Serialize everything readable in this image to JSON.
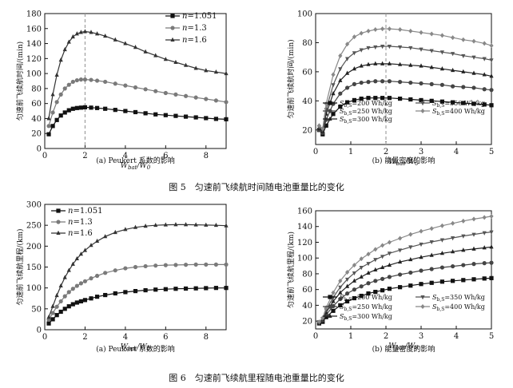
{
  "figure5": {
    "caption": "图 5　匀速前飞续航时间随电池重量比的变化"
  },
  "figure6": {
    "caption": "图 6　匀速前飞续航里程随电池重量比的变化"
  },
  "chart_data": [
    {
      "id": "c1",
      "type": "line",
      "subtitle": "(a) Peukert 系数的影响",
      "ylabel": "匀速前飞续航时间/(min)",
      "xlabel": "W_bat/W_0",
      "xlim": [
        0,
        9
      ],
      "ylim": [
        0,
        180
      ],
      "xticks": [
        0,
        2,
        4,
        6,
        8
      ],
      "yticks": [
        0,
        20,
        40,
        60,
        80,
        100,
        120,
        140,
        160,
        180
      ],
      "vline": 2,
      "grid": false,
      "legend": "top-right",
      "series": [
        {
          "name": "n=1.051",
          "marker": "square",
          "color": "#111111",
          "x": [
            0.2,
            0.4,
            0.6,
            0.8,
            1.0,
            1.2,
            1.4,
            1.6,
            1.8,
            2.0,
            2.3,
            2.6,
            3.0,
            3.5,
            4.0,
            4.5,
            5.0,
            5.5,
            6.0,
            6.5,
            7.0,
            7.5,
            8.0,
            8.5,
            9.0
          ],
          "y": [
            19,
            30,
            38,
            44,
            48,
            51,
            53,
            54,
            54.5,
            55,
            54.5,
            54,
            53,
            51.5,
            50,
            48.5,
            47,
            45.5,
            44.5,
            43.5,
            42.5,
            41.5,
            40.5,
            39.5,
            39
          ]
        },
        {
          "name": "n=1.3",
          "marker": "circle",
          "color": "#7a7a7a",
          "x": [
            0.2,
            0.4,
            0.6,
            0.8,
            1.0,
            1.2,
            1.4,
            1.6,
            1.8,
            2.0,
            2.3,
            2.6,
            3.0,
            3.5,
            4.0,
            4.5,
            5.0,
            5.5,
            6.0,
            6.5,
            7.0,
            7.5,
            8.0,
            8.5,
            9.0
          ],
          "y": [
            30,
            48,
            62,
            72,
            80,
            85,
            89,
            91,
            92,
            92,
            91.5,
            90.5,
            89,
            86.5,
            84,
            81.5,
            79,
            76.5,
            74,
            72,
            70,
            68,
            66,
            64,
            62
          ]
        },
        {
          "name": "n=1.6",
          "marker": "triangle",
          "color": "#333333",
          "x": [
            0.2,
            0.4,
            0.6,
            0.8,
            1.0,
            1.2,
            1.4,
            1.6,
            1.8,
            2.0,
            2.3,
            2.6,
            3.0,
            3.5,
            4.0,
            4.5,
            5.0,
            5.5,
            6.0,
            6.5,
            7.0,
            7.5,
            8.0,
            8.5,
            9.0
          ],
          "y": [
            40,
            72,
            98,
            118,
            132,
            142,
            149,
            153,
            155,
            156,
            155,
            153,
            150,
            145,
            140,
            135,
            129,
            124,
            119,
            115,
            111,
            107,
            104,
            102,
            100
          ]
        }
      ]
    },
    {
      "id": "c2",
      "type": "line",
      "subtitle": "(b) 能量密度的影响",
      "ylabel": "匀速前飞续航时间/(min)",
      "xlabel": "W_bat/W_0",
      "xlim": [
        0,
        5
      ],
      "ylim": [
        10,
        100
      ],
      "xticks": [
        0,
        1,
        2,
        3,
        4,
        5
      ],
      "yticks": [
        20,
        40,
        60,
        80,
        100
      ],
      "vline": 2,
      "grid": false,
      "legend": "bottom",
      "series": [
        {
          "name": "S_b,S=200 Wh/kg",
          "marker": "square",
          "color": "#111111",
          "x": [
            0.1,
            0.2,
            0.3,
            0.5,
            0.7,
            0.9,
            1.1,
            1.3,
            1.5,
            1.7,
            1.9,
            2.1,
            2.4,
            2.7,
            3.0,
            3.3,
            3.6,
            3.9,
            4.2,
            4.5,
            4.8,
            5.0
          ],
          "y": [
            20,
            17,
            23,
            31,
            36,
            39,
            40.5,
            41.5,
            42,
            42,
            42,
            42,
            41.5,
            41,
            40.5,
            40,
            39.5,
            39,
            38.5,
            38,
            37.5,
            37
          ]
        },
        {
          "name": "S_b,S=250 Wh/kg",
          "marker": "circle",
          "color": "#444444",
          "x": [
            0.1,
            0.2,
            0.3,
            0.5,
            0.7,
            0.9,
            1.1,
            1.3,
            1.5,
            1.7,
            1.9,
            2.1,
            2.4,
            2.7,
            3.0,
            3.3,
            3.6,
            3.9,
            4.2,
            4.5,
            4.8,
            5.0
          ],
          "y": [
            20,
            18,
            27,
            38,
            45,
            49,
            51.5,
            52.5,
            53,
            53.5,
            53.5,
            53.5,
            53,
            52.5,
            52,
            51.5,
            51,
            50,
            49.5,
            49,
            48,
            47.5
          ]
        },
        {
          "name": "S_b,S=300 Wh/kg",
          "marker": "triangle",
          "color": "#222222",
          "x": [
            0.1,
            0.2,
            0.3,
            0.5,
            0.7,
            0.9,
            1.1,
            1.3,
            1.5,
            1.7,
            1.9,
            2.1,
            2.4,
            2.7,
            3.0,
            3.3,
            3.6,
            3.9,
            4.2,
            4.5,
            4.8,
            5.0
          ],
          "y": [
            21,
            19,
            31,
            45,
            54,
            59,
            62,
            64,
            65,
            65.5,
            65.5,
            65.5,
            65,
            64.5,
            64,
            63,
            62,
            61,
            60,
            59,
            58,
            57
          ]
        },
        {
          "name": "S_b,S=350 Wh/kg",
          "marker": "triangle-down",
          "color": "#555555",
          "x": [
            0.1,
            0.2,
            0.3,
            0.5,
            0.7,
            0.9,
            1.1,
            1.3,
            1.5,
            1.7,
            1.9,
            2.1,
            2.4,
            2.7,
            3.0,
            3.3,
            3.6,
            3.9,
            4.2,
            4.5,
            4.8,
            5.0
          ],
          "y": [
            22,
            20,
            34,
            51,
            62,
            69,
            73,
            75,
            76.5,
            77,
            77.5,
            77.5,
            77,
            76.5,
            75.5,
            74.5,
            73.5,
            72.5,
            71,
            70,
            69,
            68
          ]
        },
        {
          "name": "S_b,S=400 Wh/kg",
          "marker": "diamond",
          "color": "#888888",
          "x": [
            0.1,
            0.2,
            0.3,
            0.5,
            0.7,
            0.9,
            1.1,
            1.3,
            1.5,
            1.7,
            1.9,
            2.1,
            2.4,
            2.7,
            3.0,
            3.3,
            3.6,
            3.9,
            4.2,
            4.5,
            4.8,
            5.0
          ],
          "y": [
            23,
            21,
            38,
            58,
            71,
            79,
            84,
            86.5,
            88,
            89,
            89.5,
            89.5,
            89,
            88,
            87,
            86,
            85,
            83.5,
            82,
            81,
            79.5,
            78
          ]
        }
      ]
    },
    {
      "id": "c3",
      "type": "line",
      "subtitle": "(a) Peukert 系数的影响",
      "ylabel": "匀速前飞续航里程/(km)",
      "xlabel": "W_bat/W_0",
      "xlim": [
        0,
        9
      ],
      "ylim": [
        0,
        300
      ],
      "xticks": [
        0,
        2,
        4,
        6,
        8
      ],
      "yticks": [
        0,
        50,
        100,
        150,
        200,
        250,
        300
      ],
      "grid": false,
      "legend": "top-left",
      "series": [
        {
          "name": "n=1.051",
          "marker": "square",
          "color": "#111111",
          "x": [
            0.2,
            0.4,
            0.6,
            0.8,
            1.0,
            1.2,
            1.4,
            1.6,
            1.8,
            2.0,
            2.3,
            2.6,
            3.0,
            3.5,
            4.0,
            4.5,
            5.0,
            5.5,
            6.0,
            6.5,
            7.0,
            7.5,
            8.0,
            8.5,
            9.0
          ],
          "y": [
            15,
            25,
            35,
            43,
            50,
            56,
            61,
            65,
            68,
            71,
            75,
            79,
            83,
            87,
            90,
            92.5,
            94.5,
            96,
            97,
            98,
            98.5,
            99,
            99.5,
            100,
            100
          ]
        },
        {
          "name": "n=1.3",
          "marker": "circle",
          "color": "#7a7a7a",
          "x": [
            0.2,
            0.4,
            0.6,
            0.8,
            1.0,
            1.2,
            1.4,
            1.6,
            1.8,
            2.0,
            2.3,
            2.6,
            3.0,
            3.5,
            4.0,
            4.5,
            5.0,
            5.5,
            6.0,
            6.5,
            7.0,
            7.5,
            8.0,
            8.5,
            9.0
          ],
          "y": [
            24,
            40,
            55,
            68,
            80,
            90,
            98,
            105,
            111,
            116,
            123,
            129,
            136,
            142,
            147,
            150,
            152,
            153.5,
            154.5,
            155,
            155.5,
            156,
            156,
            156,
            156
          ]
        },
        {
          "name": "n=1.6",
          "marker": "triangle",
          "color": "#333333",
          "x": [
            0.2,
            0.4,
            0.6,
            0.8,
            1.0,
            1.2,
            1.4,
            1.6,
            1.8,
            2.0,
            2.3,
            2.6,
            3.0,
            3.5,
            4.0,
            4.5,
            5.0,
            5.5,
            6.0,
            6.5,
            7.0,
            7.5,
            8.0,
            8.5,
            9.0
          ],
          "y": [
            30,
            56,
            82,
            105,
            125,
            142,
            157,
            170,
            181,
            190,
            202,
            212,
            223,
            233,
            240,
            245,
            248,
            250,
            251,
            251.5,
            251.5,
            251,
            250.5,
            250,
            249
          ]
        }
      ]
    },
    {
      "id": "c4",
      "type": "line",
      "subtitle": "(b) 能量密度的影响",
      "ylabel": "匀速前飞续航里程/(km)",
      "xlabel": "W_bat/W_0",
      "xlim": [
        0,
        5
      ],
      "ylim": [
        10,
        160
      ],
      "xticks": [
        0,
        1,
        2,
        3,
        4,
        5
      ],
      "yticks": [
        20,
        40,
        60,
        80,
        100,
        120,
        140,
        160
      ],
      "grid": false,
      "legend": "bottom-right",
      "series": [
        {
          "name": "S_b,S=200 Wh/kg",
          "marker": "square",
          "color": "#111111",
          "x": [
            0.1,
            0.2,
            0.3,
            0.5,
            0.7,
            0.9,
            1.1,
            1.3,
            1.5,
            1.7,
            1.9,
            2.1,
            2.4,
            2.7,
            3.0,
            3.3,
            3.6,
            3.9,
            4.2,
            4.5,
            4.8,
            5.0
          ],
          "y": [
            17,
            19,
            25,
            33,
            40,
            45,
            49,
            52,
            55,
            57,
            59,
            61,
            63,
            65,
            67,
            68.5,
            70,
            71,
            72,
            73,
            74,
            74.5
          ]
        },
        {
          "name": "S_b,S=250 Wh/kg",
          "marker": "circle",
          "color": "#444444",
          "x": [
            0.1,
            0.2,
            0.3,
            0.5,
            0.7,
            0.9,
            1.1,
            1.3,
            1.5,
            1.7,
            1.9,
            2.1,
            2.4,
            2.7,
            3.0,
            3.3,
            3.6,
            3.9,
            4.2,
            4.5,
            4.8,
            5.0
          ],
          "y": [
            18,
            21,
            28,
            39,
            48,
            55,
            60,
            64,
            68,
            71,
            73.5,
            76,
            79,
            81.5,
            84,
            86,
            88,
            89.5,
            91,
            92.5,
            93.5,
            94
          ]
        },
        {
          "name": "S_b,S=300 Wh/kg",
          "marker": "triangle",
          "color": "#222222",
          "x": [
            0.1,
            0.2,
            0.3,
            0.5,
            0.7,
            0.9,
            1.1,
            1.3,
            1.5,
            1.7,
            1.9,
            2.1,
            2.4,
            2.7,
            3.0,
            3.3,
            3.6,
            3.9,
            4.2,
            4.5,
            4.8,
            5.0
          ],
          "y": [
            18,
            22,
            31,
            45,
            56,
            64,
            71,
            76,
            81,
            85,
            88,
            91,
            95,
            98,
            101,
            103.5,
            106,
            108,
            110,
            111.5,
            113,
            114
          ]
        },
        {
          "name": "S_b,S=350 Wh/kg",
          "marker": "triangle-down",
          "color": "#555555",
          "x": [
            0.1,
            0.2,
            0.3,
            0.5,
            0.7,
            0.9,
            1.1,
            1.3,
            1.5,
            1.7,
            1.9,
            2.1,
            2.4,
            2.7,
            3.0,
            3.3,
            3.6,
            3.9,
            4.2,
            4.5,
            4.8,
            5.0
          ],
          "y": [
            19,
            23,
            34,
            50,
            63,
            73,
            81,
            88,
            93,
            98,
            102,
            106,
            110,
            114,
            117.5,
            120.5,
            123,
            125.5,
            128,
            130,
            132,
            133
          ]
        },
        {
          "name": "S_b,S=400 Wh/kg",
          "marker": "diamond",
          "color": "#888888",
          "x": [
            0.1,
            0.2,
            0.3,
            0.5,
            0.7,
            0.9,
            1.1,
            1.3,
            1.5,
            1.7,
            1.9,
            2.1,
            2.4,
            2.7,
            3.0,
            3.3,
            3.6,
            3.9,
            4.2,
            4.5,
            4.8,
            5.0
          ],
          "y": [
            19,
            24,
            37,
            56,
            71,
            82,
            91,
            99,
            105,
            111,
            116,
            120,
            125,
            130,
            134,
            137.5,
            141,
            144,
            147,
            149.5,
            151.5,
            153
          ]
        }
      ]
    }
  ]
}
